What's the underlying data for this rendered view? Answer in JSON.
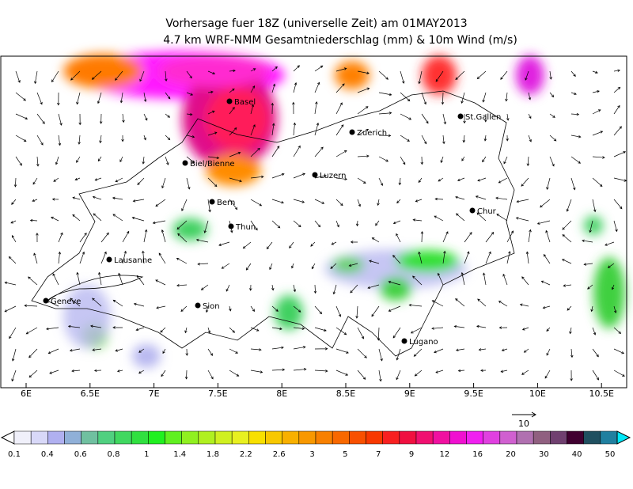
{
  "header": {
    "title": "Vorhersage fuer 18Z (universelle Zeit) am 01MAY2013",
    "subtitle": "4.7 km WRF-NMM Gesamtniederschlag (mm) & 10m Wind (m/s)"
  },
  "cities": [
    "Basel",
    "Biel/Bienne",
    "Bern",
    "Thun",
    "Lausanne",
    "Geneve",
    "Sion",
    "Luzern",
    "Zuerich",
    "St.Gallen",
    "Chur",
    "Lugano"
  ],
  "longitude_labels": [
    "6E",
    "6.5E",
    "7E",
    "7.5E",
    "8E",
    "8.5E",
    "9E",
    "9.5E",
    "10E",
    "10.5E"
  ],
  "wind_reference": "10",
  "legend_labels": [
    "0.1",
    "0.4",
    "0.6",
    "0.8",
    "1",
    "1.4",
    "1.8",
    "2.2",
    "2.6",
    "3",
    "5",
    "7",
    "9",
    "12",
    "16",
    "20",
    "30",
    "40",
    "50"
  ]
}
